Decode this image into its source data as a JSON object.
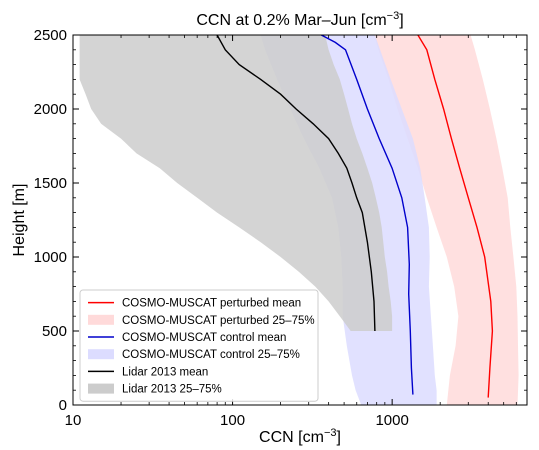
{
  "chart_data": {
    "type": "line",
    "title": "CCN at 0.2% Mar–Jun [cm−3]",
    "title_main": "CCN at 0.2% Mar–Jun [cm",
    "title_sup": "−3",
    "title_end": "]",
    "xlabel_main": "CCN [cm",
    "xlabel_sup": "−3",
    "xlabel_end": "]",
    "ylabel": "Height [m]",
    "xscale": "log",
    "xlim": [
      10,
      7000
    ],
    "ylim": [
      0,
      2500
    ],
    "xticks": [
      {
        "value": 10,
        "label": "10"
      },
      {
        "value": 100,
        "label": "100"
      },
      {
        "value": 1000,
        "label": "1000"
      }
    ],
    "yticks": [
      {
        "value": 0,
        "label": "0"
      },
      {
        "value": 500,
        "label": "500"
      },
      {
        "value": 1000,
        "label": "1000"
      },
      {
        "value": 1500,
        "label": "1500"
      },
      {
        "value": 2000,
        "label": "2000"
      },
      {
        "value": 2500,
        "label": "2500"
      }
    ],
    "grid": false,
    "legend_position": "lower-left",
    "series": [
      {
        "name": "COSMO-MUSCAT perturbed mean",
        "kind": "line",
        "color": "#ff0000",
        "x": [
          4000,
          4100,
          4250,
          4150,
          3800,
          3400,
          3000,
          2650,
          2350,
          2100,
          1850,
          1650,
          1450
        ],
        "y": [
          50,
          250,
          500,
          700,
          1000,
          1200,
          1400,
          1600,
          1800,
          2000,
          2200,
          2400,
          2500
        ]
      },
      {
        "name": "COSMO-MUSCAT perturbed 25–75%",
        "kind": "band",
        "color": "#ffdada",
        "y": [
          0,
          200,
          400,
          600,
          800,
          1000,
          1200,
          1400,
          1600,
          1800,
          2000,
          2200,
          2400,
          2500
        ],
        "x_low": [
          2200,
          2300,
          2500,
          2600,
          2450,
          2200,
          1900,
          1650,
          1450,
          1250,
          1080,
          950,
          820,
          770
        ],
        "x_high": [
          6100,
          6200,
          6150,
          6100,
          6000,
          5750,
          5500,
          5300,
          4900,
          4500,
          4100,
          3700,
          3300,
          3100
        ]
      },
      {
        "name": "COSMO-MUSCAT control mean",
        "kind": "line",
        "color": "#0000cc",
        "x": [
          1350,
          1320,
          1300,
          1270,
          1280,
          1250,
          1150,
          1000,
          830,
          700,
          600,
          510,
          440,
          360
        ],
        "y": [
          70,
          250,
          500,
          750,
          950,
          1200,
          1400,
          1600,
          1800,
          2000,
          2200,
          2400,
          2450,
          2500
        ]
      },
      {
        "name": "COSMO-MUSCAT control 25–75%",
        "kind": "band",
        "color": "#dcdcff",
        "y": [
          0,
          100,
          200,
          400,
          600,
          800,
          1000,
          1200,
          1400,
          1600,
          1800,
          2000,
          2200,
          2400,
          2500
        ],
        "x_low": [
          640,
          590,
          560,
          520,
          490,
          490,
          480,
          460,
          420,
          350,
          280,
          230,
          190,
          160,
          150
        ],
        "x_high": [
          1900,
          1900,
          1850,
          1800,
          1750,
          1700,
          1720,
          1700,
          1600,
          1500,
          1350,
          1150,
          980,
          840,
          780
        ]
      },
      {
        "name": "Lidar 2013 mean",
        "kind": "line",
        "color": "#000000",
        "x": [
          780,
          770,
          740,
          700,
          650,
          600,
          560,
          520,
          460,
          400,
          320,
          250,
          200,
          150,
          110,
          90,
          80
        ],
        "y": [
          500,
          700,
          900,
          1100,
          1300,
          1400,
          1500,
          1600,
          1700,
          1800,
          1900,
          2000,
          2100,
          2200,
          2300,
          2400,
          2500
        ]
      },
      {
        "name": "Lidar 2013 25–75%",
        "kind": "band",
        "color": "#cccccc",
        "y": [
          500,
          600,
          700,
          800,
          900,
          1000,
          1100,
          1200,
          1300,
          1400,
          1500,
          1600,
          1700,
          1800,
          1900,
          2000,
          2100,
          2200,
          2300,
          2400,
          2500
        ],
        "x_low": [
          550,
          470,
          400,
          330,
          260,
          200,
          150,
          110,
          80,
          60,
          45,
          35,
          25,
          20,
          15,
          13,
          12,
          11,
          11,
          11,
          11
        ],
        "x_high": [
          1000,
          1000,
          980,
          950,
          930,
          900,
          880,
          860,
          830,
          790,
          750,
          700,
          650,
          600,
          560,
          530,
          500,
          470,
          430,
          400,
          380
        ]
      }
    ],
    "legend": [
      {
        "label": "COSMO-MUSCAT perturbed mean",
        "kind": "line",
        "color": "#ff0000"
      },
      {
        "label": "COSMO-MUSCAT perturbed 25–75%",
        "kind": "patch",
        "color": "#ffdada"
      },
      {
        "label": "COSMO-MUSCAT control mean",
        "kind": "line",
        "color": "#0000cc"
      },
      {
        "label": "COSMO-MUSCAT control 25–75%",
        "kind": "patch",
        "color": "#dcdcff"
      },
      {
        "label": "Lidar 2013 mean",
        "kind": "line",
        "color": "#000000"
      },
      {
        "label": "Lidar 2013 25–75%",
        "kind": "patch",
        "color": "#cccccc"
      }
    ]
  }
}
